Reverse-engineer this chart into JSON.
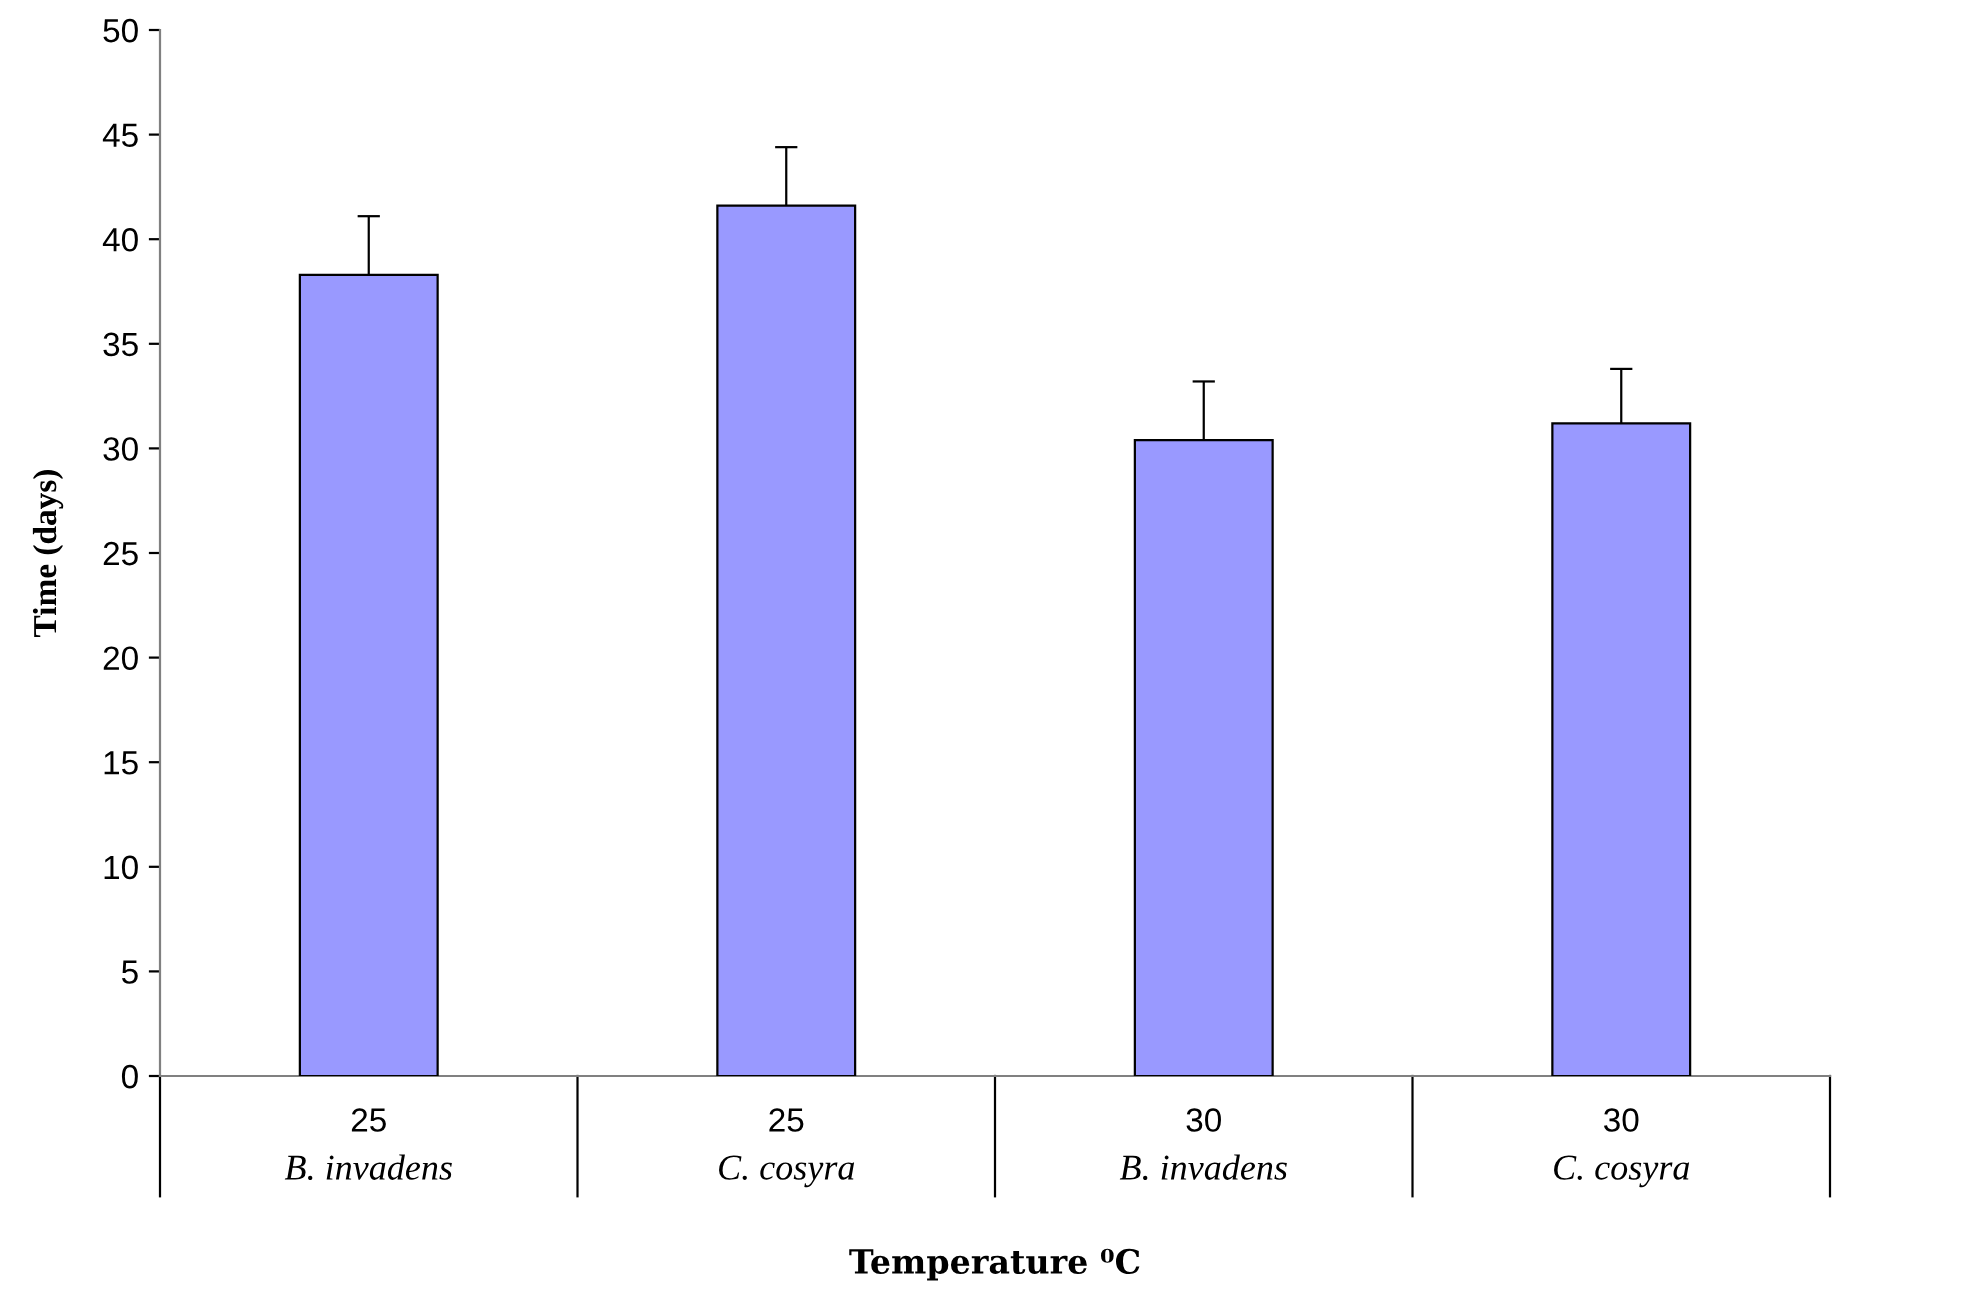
{
  "chart_data": {
    "type": "bar",
    "xlabel": "Temperature ⁰C",
    "ylabel": "Time (days)",
    "categories": [
      "25\nB. invadens",
      "25\nC. cosyra",
      "30\nB. invadens",
      "30\nC. cosyra"
    ],
    "values": [
      38.3,
      41.6,
      30.4,
      31.2
    ],
    "errors": [
      2.8,
      2.8,
      2.8,
      2.6
    ],
    "color": "#9999ff",
    "ylim": [
      0,
      50
    ],
    "yticks": [
      0,
      5,
      10,
      15,
      20,
      25,
      30,
      35,
      40,
      45,
      50
    ],
    "grid": false,
    "legend": false
  }
}
